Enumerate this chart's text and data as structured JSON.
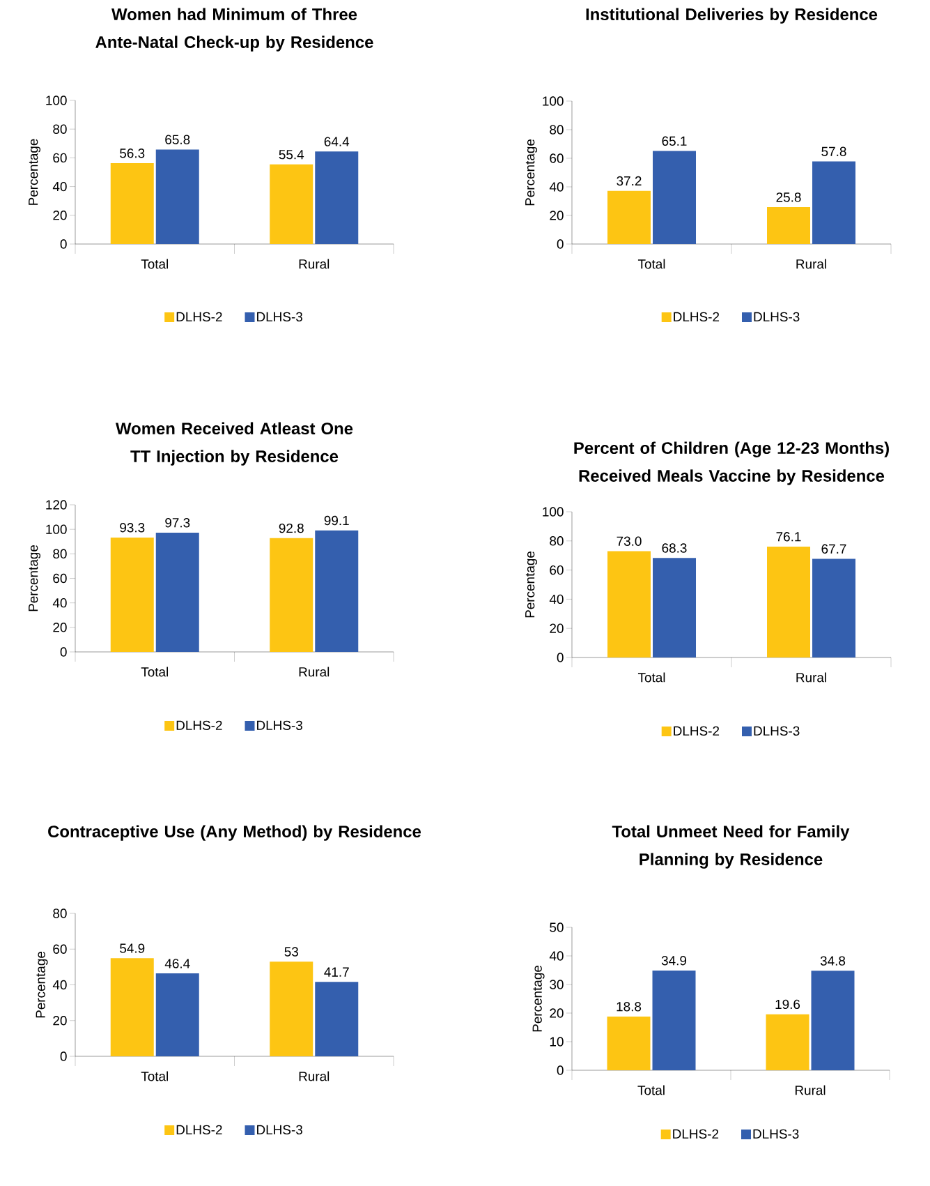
{
  "chart_data": [
    {
      "type": "bar",
      "title": "Women had Minimum of Three Ante-Natal Check-up by Residence",
      "ylabel": "Percentage",
      "categories": [
        "Total",
        "Rural"
      ],
      "ylim": [
        0,
        100
      ],
      "yticks": [
        0,
        20,
        40,
        60,
        80,
        100
      ],
      "legend": "bottom",
      "data_labels": true,
      "series": [
        {
          "name": "DLHS-2",
          "color": "#fdc513",
          "values": [
            56.3,
            55.4
          ],
          "value_labels": [
            "56.3",
            "55.4"
          ]
        },
        {
          "name": "DLHS-3",
          "color": "#345fae",
          "values": [
            65.8,
            64.4
          ],
          "value_labels": [
            "65.8",
            "64.4"
          ]
        }
      ]
    },
    {
      "type": "bar",
      "title": "Institutional Deliveries by Residence",
      "ylabel": "Percentage",
      "categories": [
        "Total",
        "Rural"
      ],
      "ylim": [
        0,
        100
      ],
      "yticks": [
        0,
        20,
        40,
        60,
        80,
        100
      ],
      "legend": "bottom",
      "data_labels": true,
      "series": [
        {
          "name": "DLHS-2",
          "color": "#fdc513",
          "values": [
            37.2,
            25.8
          ],
          "value_labels": [
            "37.2",
            "25.8"
          ]
        },
        {
          "name": "DLHS-3",
          "color": "#345fae",
          "values": [
            65.1,
            57.8
          ],
          "value_labels": [
            "65.1",
            "57.8"
          ]
        }
      ]
    },
    {
      "type": "bar",
      "title": "Women Received Atleast One TT Injection by Residence",
      "ylabel": "Percentage",
      "categories": [
        "Total",
        "Rural"
      ],
      "ylim": [
        0,
        120
      ],
      "yticks": [
        0,
        20,
        40,
        60,
        80,
        100,
        120
      ],
      "legend": "bottom",
      "data_labels": true,
      "series": [
        {
          "name": "DLHS-2",
          "color": "#fdc513",
          "values": [
            93.3,
            92.8
          ],
          "value_labels": [
            "93.3",
            "92.8"
          ]
        },
        {
          "name": "DLHS-3",
          "color": "#345fae",
          "values": [
            97.3,
            99.1
          ],
          "value_labels": [
            "97.3",
            "99.1"
          ]
        }
      ]
    },
    {
      "type": "bar",
      "title": "Percent of Children (Age 12-23 Months) Received Meals Vaccine by Residence",
      "ylabel": "Percentage",
      "categories": [
        "Total",
        "Rural"
      ],
      "ylim": [
        0,
        100
      ],
      "yticks": [
        0,
        20,
        40,
        60,
        80,
        100
      ],
      "legend": "bottom",
      "data_labels": true,
      "series": [
        {
          "name": "DLHS-2",
          "color": "#fdc513",
          "values": [
            73.0,
            76.1
          ],
          "value_labels": [
            "73.0",
            "76.1"
          ]
        },
        {
          "name": "DLHS-3",
          "color": "#345fae",
          "values": [
            68.3,
            67.7
          ],
          "value_labels": [
            "68.3",
            "67.7"
          ]
        }
      ]
    },
    {
      "type": "bar",
      "title": "Contraceptive Use (Any Method) by Residence",
      "ylabel": "Percentage",
      "categories": [
        "Total",
        "Rural"
      ],
      "ylim": [
        0,
        80
      ],
      "yticks": [
        0,
        20,
        40,
        60,
        80
      ],
      "legend": "bottom",
      "data_labels": true,
      "series": [
        {
          "name": "DLHS-2",
          "color": "#fdc513",
          "values": [
            54.9,
            53
          ],
          "value_labels": [
            "54.9",
            "53"
          ]
        },
        {
          "name": "DLHS-3",
          "color": "#345fae",
          "values": [
            46.4,
            41.7
          ],
          "value_labels": [
            "46.4",
            "41.7"
          ]
        }
      ]
    },
    {
      "type": "bar",
      "title": "Total Unmeet Need for Family Planning by Residence",
      "ylabel": "Percentage",
      "categories": [
        "Total",
        "Rural"
      ],
      "ylim": [
        0,
        50
      ],
      "yticks": [
        0,
        10,
        20,
        30,
        40,
        50
      ],
      "legend": "bottom",
      "data_labels": true,
      "series": [
        {
          "name": "DLHS-2",
          "color": "#fdc513",
          "values": [
            18.8,
            19.6
          ],
          "value_labels": [
            "18.8",
            "19.6"
          ]
        },
        {
          "name": "DLHS-3",
          "color": "#345fae",
          "values": [
            34.9,
            34.8
          ],
          "value_labels": [
            "34.9",
            "34.8"
          ]
        }
      ]
    }
  ]
}
